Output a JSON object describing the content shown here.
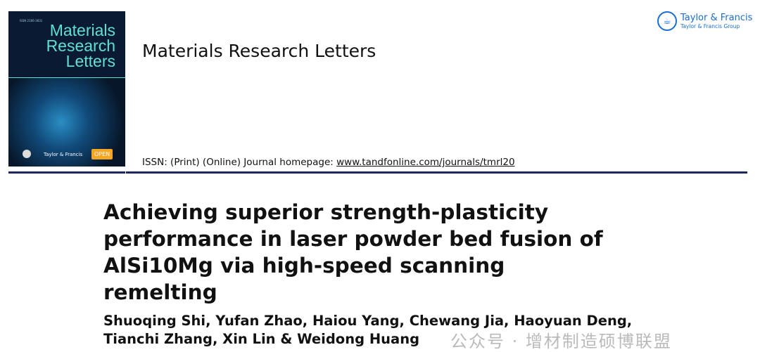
{
  "cover": {
    "issn_small": "ISSN 2166-3831",
    "title_lines": [
      "Materials",
      "Research",
      "Letters"
    ],
    "publisher": "Taylor & Francis",
    "open_badge": "OPEN"
  },
  "journal_title": "Materials Research Letters",
  "issn_text": "ISSN: (Print) (Online) Journal homepage: ",
  "homepage_link": "www.tandfonline.com/journals/tmrl20",
  "publisher_logo": {
    "name": "Taylor & Francis",
    "group": "Taylor & Francis Group",
    "color": "#1a6dd1"
  },
  "article_title": "Achieving superior strength-plasticity performance in laser powder bed fusion of AlSi10Mg via high-speed scanning remelting",
  "authors": "Shuoqing Shi, Yufan Zhao, Haiou Yang, Chewang Jia, Haoyuan Deng, Tianchi Zhang, Xin Lin & Weidong Huang",
  "watermark": "公众号 · 增材制造硕博联盟"
}
